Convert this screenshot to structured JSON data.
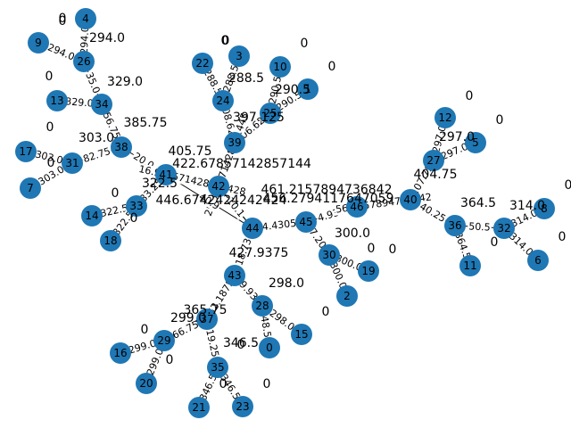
{
  "node_color": "#1f77b4",
  "edge_color": "#000000",
  "nodes": [
    {
      "id": "0",
      "value": "346.5"
    },
    {
      "id": "1",
      "value": "0"
    },
    {
      "id": "2",
      "value": "0"
    },
    {
      "id": "3",
      "value": "0"
    },
    {
      "id": "4",
      "value": "0"
    },
    {
      "id": "5",
      "value": "0"
    },
    {
      "id": "6",
      "value": "0"
    },
    {
      "id": "7",
      "value": "0"
    },
    {
      "id": "8",
      "value": "0"
    },
    {
      "id": "9",
      "value": "0"
    },
    {
      "id": "10",
      "value": "0"
    },
    {
      "id": "11",
      "value": "0"
    },
    {
      "id": "12",
      "value": "0"
    },
    {
      "id": "13",
      "value": "0"
    },
    {
      "id": "14",
      "value": "0"
    },
    {
      "id": "15",
      "value": "0"
    },
    {
      "id": "16",
      "value": "0"
    },
    {
      "id": "17",
      "value": "0"
    },
    {
      "id": "18",
      "value": "0"
    },
    {
      "id": "19",
      "value": "0"
    },
    {
      "id": "20",
      "value": "0"
    },
    {
      "id": "21",
      "value": "0"
    },
    {
      "id": "22",
      "value": "0"
    },
    {
      "id": "23",
      "value": "0"
    },
    {
      "id": "24",
      "value": "288.5"
    },
    {
      "id": "25",
      "value": "290.5"
    },
    {
      "id": "26",
      "value": "294.0"
    },
    {
      "id": "27",
      "value": "297.0"
    },
    {
      "id": "28",
      "value": "298.0"
    },
    {
      "id": "29",
      "value": "299.0"
    },
    {
      "id": "30",
      "value": "300.0"
    },
    {
      "id": "31",
      "value": "303.0"
    },
    {
      "id": "32",
      "value": "314.0"
    },
    {
      "id": "33",
      "value": "322.5"
    },
    {
      "id": "34",
      "value": "329.0"
    },
    {
      "id": "35",
      "value": "0"
    },
    {
      "id": "36",
      "value": "364.5"
    },
    {
      "id": "37",
      "value": "365.75"
    },
    {
      "id": "38",
      "value": "385.75"
    },
    {
      "id": "39",
      "value": "397.125"
    },
    {
      "id": "40",
      "value": "404.75"
    },
    {
      "id": "41",
      "value": "405.75"
    },
    {
      "id": "42",
      "value": "422.67857142857144"
    },
    {
      "id": "43",
      "value": "427.9375"
    },
    {
      "id": "44",
      "value": "446.6742424242424"
    },
    {
      "id": "45",
      "value": "456.2794117647059"
    },
    {
      "id": "46",
      "value": "461.2157894736842"
    }
  ],
  "edges": [
    {
      "source": "4",
      "target": "26",
      "label": "294.0"
    },
    {
      "source": "9",
      "target": "26",
      "label": "294.0"
    },
    {
      "source": "26",
      "target": "34",
      "label": "35.0"
    },
    {
      "source": "13",
      "target": "34",
      "label": "329.0"
    },
    {
      "source": "34",
      "target": "38",
      "label": "56.75"
    },
    {
      "source": "17",
      "target": "31",
      "label": "303.0"
    },
    {
      "source": "7",
      "target": "31",
      "label": "303.0"
    },
    {
      "source": "31",
      "target": "38",
      "label": "82.75"
    },
    {
      "source": "38",
      "target": "41",
      "label": "20.0"
    },
    {
      "source": "41",
      "target": "33",
      "label": "83.25"
    },
    {
      "source": "14",
      "target": "33",
      "label": "322.5"
    },
    {
      "source": "18",
      "target": "33",
      "label": "322.5"
    },
    {
      "source": "41",
      "target": "42",
      "label": "16.928571428571428"
    },
    {
      "source": "22",
      "target": "24",
      "label": "288.5"
    },
    {
      "source": "3",
      "target": "24",
      "label": "288.5"
    },
    {
      "source": "24",
      "target": "39",
      "label": "108.625"
    },
    {
      "source": "10",
      "target": "25",
      "label": "290.5"
    },
    {
      "source": "1",
      "target": "25",
      "label": "290.5"
    },
    {
      "source": "25",
      "target": "39",
      "label": "106.625"
    },
    {
      "source": "39",
      "target": "42",
      "label": "25.553571428571445"
    },
    {
      "source": "42",
      "target": "44",
      "label": "24.0"
    },
    {
      "source": "44",
      "target": "45",
      "label": "4.4305"
    },
    {
      "source": "45",
      "target": "46",
      "label": "4.936"
    },
    {
      "source": "45",
      "target": "30",
      "label": "17.208"
    },
    {
      "source": "30",
      "target": "19",
      "label": "300.0"
    },
    {
      "source": "30",
      "target": "2",
      "label": "300.0"
    },
    {
      "source": "46",
      "target": "40",
      "label": "56.4657894736842"
    },
    {
      "source": "40",
      "target": "27",
      "label": "107.75"
    },
    {
      "source": "27",
      "target": "12",
      "label": "297.0"
    },
    {
      "source": "27",
      "target": "5",
      "label": "297.0"
    },
    {
      "source": "40",
      "target": "36",
      "label": "40.25"
    },
    {
      "source": "36",
      "target": "11",
      "label": "364.5"
    },
    {
      "source": "36",
      "target": "32",
      "label": "50.5"
    },
    {
      "source": "32",
      "target": "8",
      "label": "314.0"
    },
    {
      "source": "32",
      "target": "6",
      "label": "314.0"
    },
    {
      "source": "44",
      "target": "43",
      "label": "18.73"
    },
    {
      "source": "44",
      "target": "41",
      "label": "40.9"
    },
    {
      "source": "43",
      "target": "37",
      "label": "62.1875"
    },
    {
      "source": "43",
      "target": "28",
      "label": "129.9375"
    },
    {
      "source": "28",
      "target": "15",
      "label": "298.0"
    },
    {
      "source": "28",
      "target": "0",
      "label": "48.5"
    },
    {
      "source": "37",
      "target": "29",
      "label": "66.75"
    },
    {
      "source": "29",
      "target": "16",
      "label": "299.0"
    },
    {
      "source": "29",
      "target": "20",
      "label": "299.0"
    },
    {
      "source": "37",
      "target": "35",
      "label": "19.25"
    },
    {
      "source": "35",
      "target": "21",
      "label": "346.5"
    },
    {
      "source": "35",
      "target": "23",
      "label": "346.5"
    },
    {
      "source": "44",
      "target": "42",
      "label": "10.1"
    }
  ]
}
